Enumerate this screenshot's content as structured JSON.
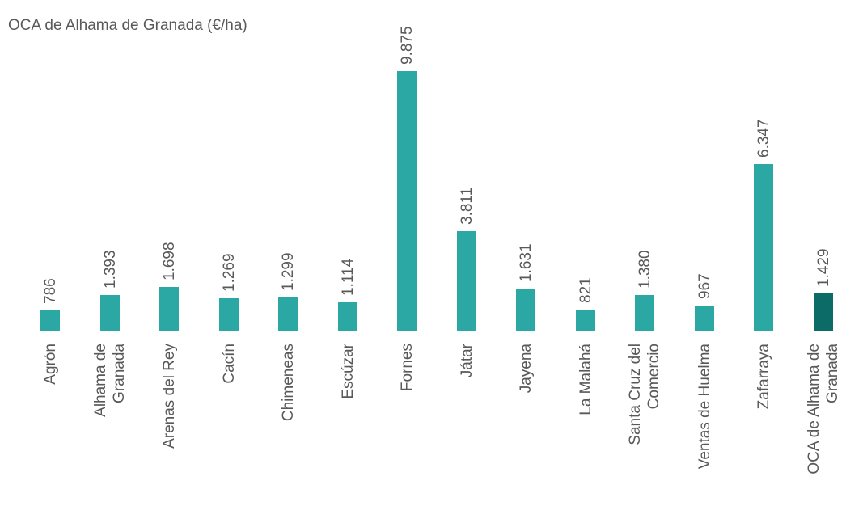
{
  "chart_data": {
    "type": "bar",
    "title": "OCA de Alhama de Granada (€/ha)",
    "categories": [
      "Agrón",
      "Alhama de\nGranada",
      "Arenas del Rey",
      "Cacín",
      "Chimeneas",
      "Escúzar",
      "Fornes",
      "Játar",
      "Jayena",
      "La Malahá",
      "Santa Cruz del\nComercio",
      "Ventas de Huelma",
      "Zafarraya",
      "OCA de Alhama de\nGranada"
    ],
    "values": [
      786,
      1393,
      1698,
      1269,
      1299,
      1114,
      9875,
      3811,
      1631,
      821,
      1380,
      967,
      6347,
      1429
    ],
    "value_labels": [
      "786",
      "1.393",
      "1.698",
      "1.269",
      "1.299",
      "1.114",
      "9.875",
      "3.811",
      "1.631",
      "821",
      "1.380",
      "967",
      "6.347",
      "1.429"
    ],
    "colors": [
      "#2ba8a4",
      "#2ba8a4",
      "#2ba8a4",
      "#2ba8a4",
      "#2ba8a4",
      "#2ba8a4",
      "#2ba8a4",
      "#2ba8a4",
      "#2ba8a4",
      "#2ba8a4",
      "#2ba8a4",
      "#2ba8a4",
      "#2ba8a4",
      "#0d6b67"
    ]
  }
}
